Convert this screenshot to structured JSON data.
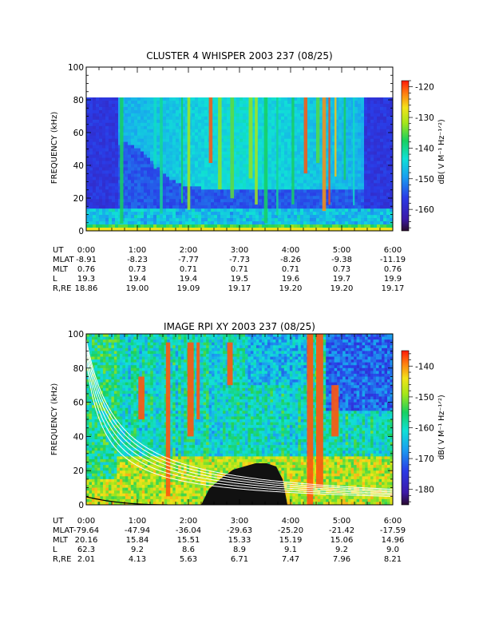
{
  "chart_data": [
    {
      "type": "heatmap",
      "title": "CLUSTER 4 WHISPER 2003 237 (08/25)",
      "ylabel": "FREQUENCY (kHz)",
      "ylim": [
        0,
        100
      ],
      "yticks": [
        "0",
        "20",
        "40",
        "60",
        "80",
        "100"
      ],
      "data_max_freq_khz": 80,
      "xlim_hours": [
        0,
        6
      ],
      "colorbar": {
        "label": "dB( V M⁻¹ Hz⁻¹ᐟ²)",
        "range": [
          -167,
          -118
        ],
        "ticks": [
          "-120",
          "-130",
          "-140",
          "-150",
          "-160"
        ],
        "tick_values": [
          -120,
          -130,
          -140,
          -150,
          -160
        ]
      },
      "ephemeris": {
        "rows": [
          {
            "label": "UT",
            "values": [
              "0:00",
              "1:00",
              "2:00",
              "3:00",
              "4:00",
              "5:00",
              "6:00"
            ]
          },
          {
            "label": "MLAT",
            "values": [
              "-8.91",
              "-8.23",
              "-7.77",
              "-7.73",
              "-8.26",
              "-9.38",
              "-11.19"
            ]
          },
          {
            "label": "MLT",
            "values": [
              "0.76",
              "0.73",
              "0.71",
              "0.71",
              "0.71",
              "0.73",
              "0.76"
            ]
          },
          {
            "label": "L",
            "values": [
              "19.3",
              "19.4",
              "19.4",
              "19.5",
              "19.6",
              "19.7",
              "19.9"
            ]
          },
          {
            "label": "R,RE",
            "values": [
              "18.86",
              "19.00",
              "19.09",
              "19.17",
              "19.20",
              "19.20",
              "19.17"
            ]
          }
        ]
      }
    },
    {
      "type": "heatmap",
      "title": "IMAGE RPI XY 2003 237 (08/25)",
      "ylabel": "FREQUENCY (kHz)",
      "ylim": [
        0,
        100
      ],
      "yticks": [
        "0",
        "20",
        "40",
        "60",
        "80",
        "100"
      ],
      "xlim_hours": [
        0,
        6
      ],
      "colorbar": {
        "label": "dB( V M⁻¹ Hz⁻¹ᐟ²)",
        "range": [
          -185,
          -135
        ],
        "ticks": [
          "-140",
          "-150",
          "-160",
          "-170",
          "-180"
        ],
        "tick_values": [
          -140,
          -150,
          -160,
          -170,
          -180
        ]
      },
      "ephemeris": {
        "rows": [
          {
            "label": "UT",
            "values": [
              "0:00",
              "1:00",
              "2:00",
              "3:00",
              "4:00",
              "5:00",
              "6:00"
            ]
          },
          {
            "label": "MLAT",
            "values": [
              "-79.64",
              "-47.94",
              "-36.04",
              "-29.63",
              "-25.20",
              "-21.42",
              "-17.59"
            ]
          },
          {
            "label": "MLT",
            "values": [
              "20.16",
              "15.84",
              "15.51",
              "15.33",
              "15.19",
              "15.06",
              "14.96"
            ]
          },
          {
            "label": "L",
            "values": [
              "62.3",
              "9.2",
              "8.6",
              "8.9",
              "9.1",
              "9.2",
              "9.0"
            ]
          },
          {
            "label": "R,RE",
            "values": [
              "2.01",
              "4.13",
              "5.63",
              "6.71",
              "7.47",
              "7.96",
              "8.21"
            ]
          }
        ]
      }
    }
  ]
}
